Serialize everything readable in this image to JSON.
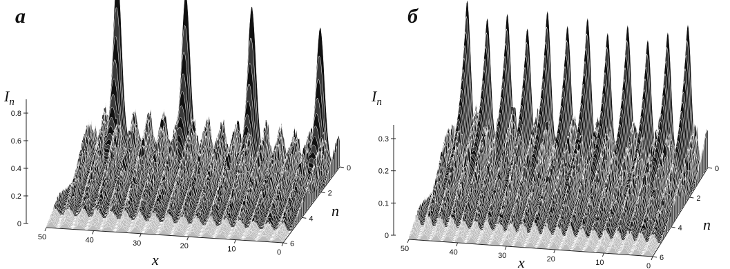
{
  "chart_data": [
    {
      "type": "surface3d",
      "panel_label": "а",
      "x_axis": {
        "label": "x",
        "ticks": [
          "50",
          "40",
          "30",
          "20",
          "10",
          "0"
        ],
        "range": [
          0,
          50
        ]
      },
      "n_axis": {
        "label": "n",
        "ticks": [
          "0",
          "2",
          "4",
          "6"
        ],
        "range": [
          0,
          6
        ]
      },
      "z_axis": {
        "label": "I",
        "subscript": "n",
        "ticks": [
          "0",
          "0.2",
          "0.4",
          "0.6",
          "0.8"
        ],
        "range": [
          0,
          0.8
        ]
      },
      "peaks": [
        {
          "x": 45.5,
          "n": 0,
          "value": 1.25
        },
        {
          "x": 31.5,
          "n": 0,
          "value": 1.15
        },
        {
          "x": 18,
          "n": 0,
          "value": 1.1
        },
        {
          "x": 4,
          "n": 0,
          "value": 1.0
        }
      ],
      "background_level": 0.3,
      "colors": {
        "surface": "#111111",
        "mesh_light": "#ffffff"
      }
    },
    {
      "type": "surface3d",
      "panel_label": "б",
      "x_axis": {
        "label": "x",
        "ticks": [
          "50",
          "40",
          "30",
          "20",
          "10",
          "0"
        ],
        "range": [
          0,
          50
        ]
      },
      "n_axis": {
        "label": "n",
        "ticks": [
          "0",
          "2",
          "4",
          "6"
        ],
        "range": [
          0,
          6
        ]
      },
      "z_axis": {
        "label": "I",
        "subscript": "n",
        "ticks": [
          "0",
          "0.1",
          "0.2",
          "0.3"
        ],
        "range": [
          0,
          0.3
        ]
      },
      "peaks": [
        {
          "x": 48,
          "n": 0,
          "value": 0.45
        },
        {
          "x": 44,
          "n": 0,
          "value": 0.4
        },
        {
          "x": 40,
          "n": 0,
          "value": 0.42
        },
        {
          "x": 36,
          "n": 0,
          "value": 0.38
        },
        {
          "x": 32,
          "n": 0,
          "value": 0.44
        },
        {
          "x": 28,
          "n": 0,
          "value": 0.4
        },
        {
          "x": 24,
          "n": 0,
          "value": 0.43
        },
        {
          "x": 20,
          "n": 0,
          "value": 0.39
        },
        {
          "x": 16,
          "n": 0,
          "value": 0.42
        },
        {
          "x": 12,
          "n": 0,
          "value": 0.38
        },
        {
          "x": 8,
          "n": 0,
          "value": 0.41
        },
        {
          "x": 4,
          "n": 0,
          "value": 0.44
        }
      ],
      "background_level": 0.15,
      "colors": {
        "surface": "#111111",
        "mesh_light": "#ffffff"
      }
    }
  ]
}
